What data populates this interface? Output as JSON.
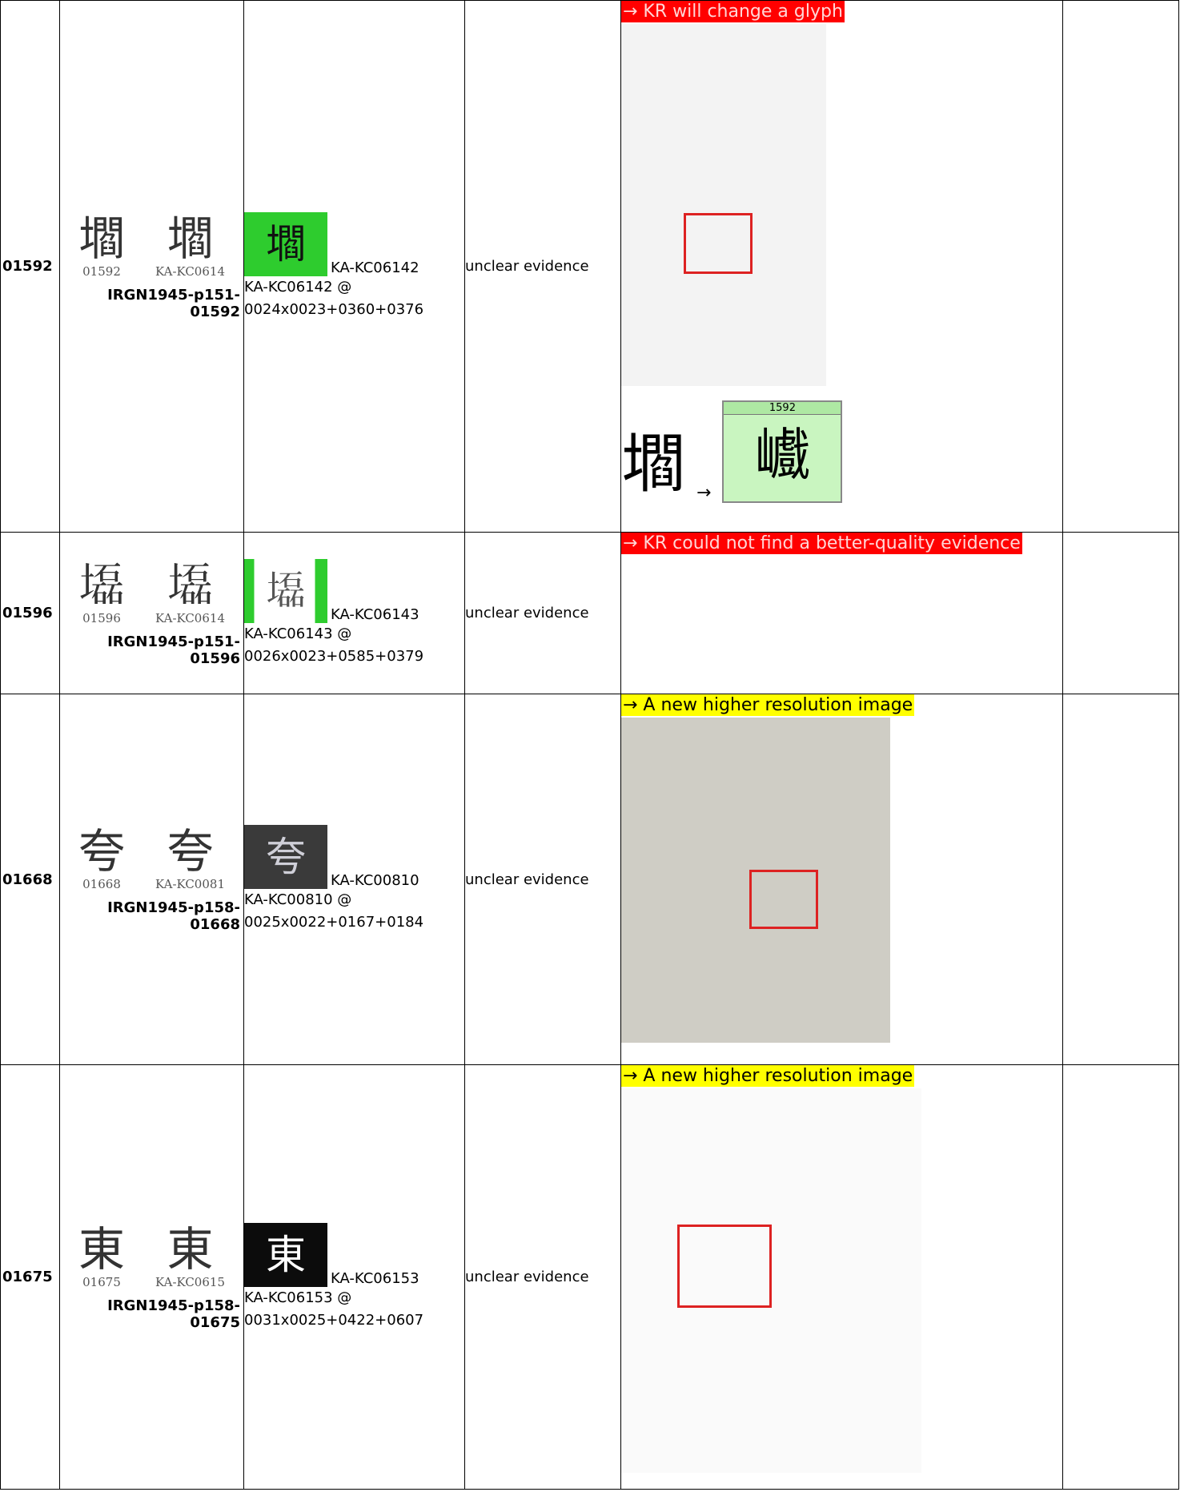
{
  "rows": [
    {
      "id": "01592",
      "glyph": "壛",
      "glyph_code": "01592",
      "glyph_source": "KA-KC0614",
      "source_id": "IRGN1945-p151-01592",
      "kc_label": "KA-KC06142",
      "kc_ref": "KA-KC06142 @ 0024x0023+0360+0376",
      "evidence": "unclear evidence",
      "note": "→ KR will change a glyph",
      "comparison": {
        "from_glyph": "壛",
        "arrow": "→",
        "label": "1592",
        "to_glyph": "巇"
      }
    },
    {
      "id": "01596",
      "glyph": "𡓃",
      "glyph_code": "01596",
      "glyph_source": "KA-KC0614",
      "source_id": "IRGN1945-p151-01596",
      "kc_label": "KA-KC06143",
      "kc_ref": "KA-KC06143 @ 0026x0023+0585+0379",
      "evidence": "unclear evidence",
      "note": "→ KR could not find a better-quality evidence"
    },
    {
      "id": "01668",
      "glyph": "夸",
      "glyph_code": "01668",
      "glyph_source": "KA-KC0081",
      "source_id": "IRGN1945-p158-01668",
      "kc_label": "KA-KC00810",
      "kc_ref": "KA-KC00810 @ 0025x0022+0167+0184",
      "evidence": "unclear evidence",
      "note": "→ A new higher resolution image"
    },
    {
      "id": "01675",
      "glyph": "東",
      "glyph_code": "01675",
      "glyph_source": "KA-KC0615",
      "source_id": "IRGN1945-p158-01675",
      "kc_label": "KA-KC06153",
      "kc_ref": "KA-KC06153 @ 0031x0025+0422+0607",
      "evidence": "unclear evidence",
      "note": "→ A new higher resolution image"
    }
  ]
}
